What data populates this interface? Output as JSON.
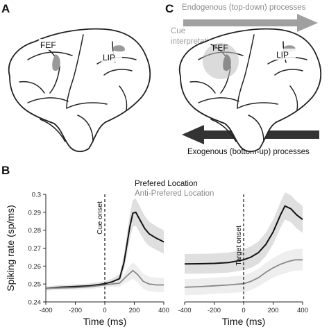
{
  "panels": {
    "a": "A",
    "b": "B",
    "c": "C"
  },
  "brain_a": {
    "fef_label": "FEF",
    "lip_label": "LIP"
  },
  "brain_c": {
    "fef_label": "FEF",
    "lip_label": "LIP",
    "cue_label_line1": "Cue",
    "cue_label_line2": "interpretation",
    "top_arrow_label": "Endogenous (top-down) processes",
    "bottom_arrow_label": "Exogenous (bottom-up) processes"
  },
  "colors": {
    "preferred": "#111111",
    "anti_preferred": "#888888",
    "band_preferred": "#d4d4d4",
    "band_anti": "#ebebeb",
    "fef_area": "#9a9a9a",
    "top_arrow": "#a0a0a0",
    "bottom_arrow": "#333333"
  },
  "chart_data": [
    {
      "type": "line",
      "event_label": "Cue onset",
      "xlabel": "Time (ms)",
      "ylabel": "Spiking rate (sp/ms)",
      "xlim": [
        -400,
        400
      ],
      "ylim": [
        0.24,
        0.3
      ],
      "xticks": [
        "-400",
        "-200",
        "0",
        "200",
        "400"
      ],
      "yticks": [
        "0.24",
        "0.25",
        "0.26",
        "0.27",
        "0.28",
        "0.29",
        "0.3"
      ],
      "legend": [
        "Prefered Location",
        "Anti-Prefered Location"
      ],
      "series": [
        {
          "name": "Prefered Location",
          "x": [
            -400,
            -300,
            -200,
            -100,
            0,
            50,
            100,
            130,
            150,
            170,
            190,
            210,
            240,
            270,
            300,
            350,
            400
          ],
          "y": [
            0.2475,
            0.2482,
            0.2486,
            0.249,
            0.2502,
            0.2512,
            0.253,
            0.262,
            0.272,
            0.282,
            0.2895,
            0.29,
            0.2855,
            0.281,
            0.278,
            0.2755,
            0.2735
          ],
          "band": [
            0.0012,
            0.0012,
            0.0012,
            0.0013,
            0.0014,
            0.0017,
            0.0025,
            0.004,
            0.006,
            0.007,
            0.0075,
            0.0075,
            0.0073,
            0.007,
            0.0068,
            0.0066,
            0.0065
          ]
        },
        {
          "name": "Anti-Prefered Location",
          "x": [
            -400,
            -300,
            -200,
            -100,
            0,
            50,
            100,
            150,
            190,
            220,
            260,
            300,
            350,
            400
          ],
          "y": [
            0.2475,
            0.2478,
            0.248,
            0.2485,
            0.2495,
            0.25,
            0.2505,
            0.2545,
            0.2575,
            0.2555,
            0.2515,
            0.25,
            0.2495,
            0.2495
          ],
          "band": [
            0.0012,
            0.0012,
            0.0012,
            0.0013,
            0.0014,
            0.0016,
            0.002,
            0.0035,
            0.0045,
            0.0045,
            0.0042,
            0.004,
            0.004,
            0.004
          ]
        }
      ]
    },
    {
      "type": "line",
      "event_label": "Target onset",
      "xlabel": "Time (ms)",
      "xlim": [
        -400,
        400
      ],
      "ylim": [
        0.24,
        0.3
      ],
      "xticks": [
        "-400",
        "-200",
        "0",
        "200",
        "400"
      ],
      "series": [
        {
          "name": "Prefered Location",
          "x": [
            -400,
            -300,
            -200,
            -100,
            0,
            50,
            100,
            150,
            200,
            250,
            280,
            320,
            360,
            400
          ],
          "y": [
            0.2612,
            0.2613,
            0.2615,
            0.262,
            0.2635,
            0.265,
            0.2675,
            0.272,
            0.279,
            0.2885,
            0.2935,
            0.292,
            0.2885,
            0.286
          ],
          "band": [
            0.0055,
            0.0055,
            0.0055,
            0.0056,
            0.0058,
            0.006,
            0.0062,
            0.0065,
            0.0068,
            0.0072,
            0.0075,
            0.0075,
            0.0075,
            0.0075
          ]
        },
        {
          "name": "Anti-Prefered Location",
          "x": [
            -400,
            -300,
            -200,
            -100,
            0,
            50,
            100,
            150,
            200,
            250,
            300,
            350,
            400
          ],
          "y": [
            0.2482,
            0.2485,
            0.249,
            0.2495,
            0.2502,
            0.2515,
            0.2535,
            0.2565,
            0.259,
            0.261,
            0.2625,
            0.2635,
            0.2635
          ],
          "band": [
            0.0045,
            0.0045,
            0.0045,
            0.0046,
            0.0047,
            0.0048,
            0.005,
            0.0052,
            0.0055,
            0.0058,
            0.006,
            0.006,
            0.006
          ]
        }
      ]
    }
  ]
}
